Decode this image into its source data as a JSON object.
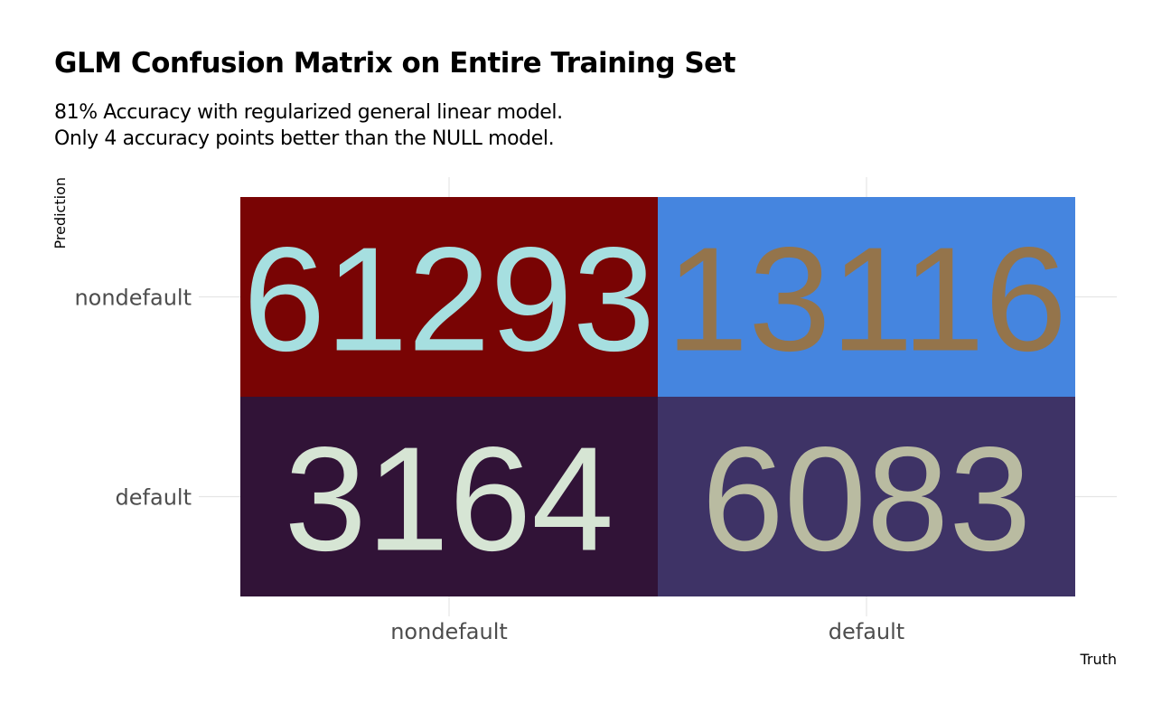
{
  "title": "GLM Confusion Matrix on Entire Training Set",
  "subtitle_lines": [
    "81% Accuracy with regularized general linear model.",
    "Only 4 accuracy points better than the NULL model."
  ],
  "chart_data": {
    "type": "heatmap",
    "title": "GLM Confusion Matrix on Entire Training Set",
    "xlabel": "Truth",
    "ylabel": "Prediction",
    "x_categories": [
      "nondefault",
      "default"
    ],
    "y_categories": [
      "nondefault",
      "default"
    ],
    "cells": [
      {
        "truth": "nondefault",
        "prediction": "nondefault",
        "value": 61293,
        "fill": "#790404",
        "text_color": "#a6dfe0"
      },
      {
        "truth": "default",
        "prediction": "nondefault",
        "value": 13116,
        "fill": "#4585df",
        "text_color": "#94744b"
      },
      {
        "truth": "nondefault",
        "prediction": "default",
        "value": 3164,
        "fill": "#311337",
        "text_color": "#d6e5d4"
      },
      {
        "truth": "default",
        "prediction": "default",
        "value": 6083,
        "fill": "#3e3366",
        "text_color": "#b9bba1"
      }
    ],
    "grid": true,
    "legend": "none"
  },
  "colors": {
    "gridline": "#e5e5e5",
    "axis_text": "#4d4d4d"
  }
}
